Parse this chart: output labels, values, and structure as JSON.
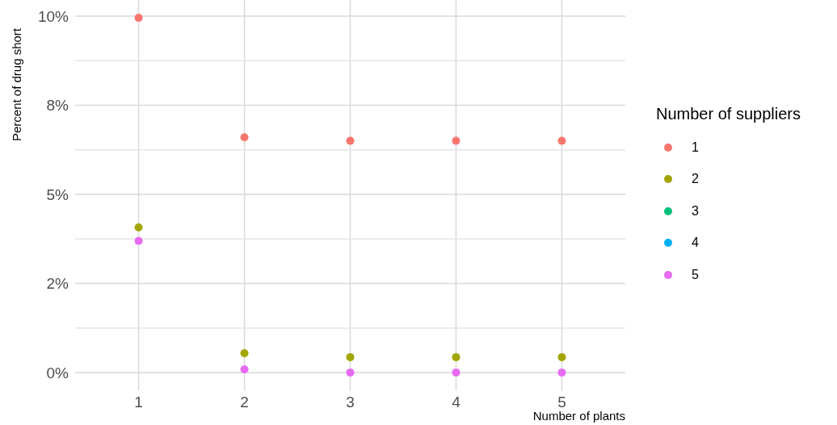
{
  "chart_data": {
    "type": "scatter",
    "xlabel": "Number of plants",
    "ylabel": "Percent of drug short",
    "legend_title": "Number of suppliers",
    "x": [
      1,
      2,
      3,
      4,
      5
    ],
    "series": [
      {
        "name": "1",
        "color": "#f8766d",
        "values": [
          9.95,
          6.6,
          6.5,
          6.5,
          6.5
        ]
      },
      {
        "name": "2",
        "color": "#a3a500",
        "values": [
          4.07,
          0.54,
          0.43,
          0.43,
          0.43
        ]
      },
      {
        "name": "3",
        "color": "#00bf7d",
        "values": [
          null,
          null,
          null,
          null,
          null
        ]
      },
      {
        "name": "4",
        "color": "#00b0f6",
        "values": [
          null,
          null,
          null,
          null,
          null
        ]
      },
      {
        "name": "5",
        "color": "#e76bf3",
        "values": [
          3.69,
          0.09,
          0,
          0,
          0
        ]
      }
    ],
    "xlim": [
      0.4,
      5.6
    ],
    "xticks": [
      1,
      2,
      3,
      4,
      5
    ],
    "ylim": [
      -0.5,
      10.45
    ],
    "yticks": [
      {
        "value": 0,
        "label": "0%"
      },
      {
        "value": 2.5,
        "label": "2%"
      },
      {
        "value": 5,
        "label": "5%"
      },
      {
        "value": 7.5,
        "label": "8%"
      },
      {
        "value": 10,
        "label": "10%"
      }
    ],
    "grid": true,
    "legend": "right",
    "marker": "circle"
  }
}
